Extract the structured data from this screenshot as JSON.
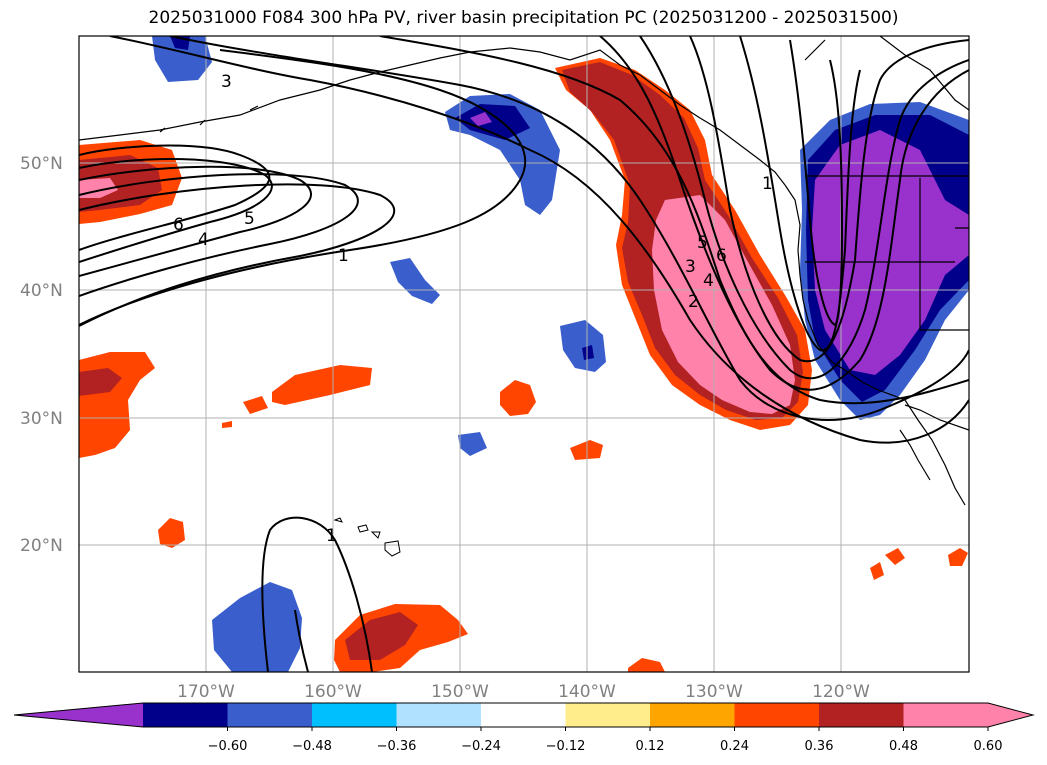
{
  "title": "2025031000 F084 300 hPa PV, river basin precipitation PC (2025031200 - 2025031500)",
  "lat_labels": [
    "50°N",
    "40°N",
    "30°N",
    "20°N"
  ],
  "lon_labels": [
    "170°W",
    "160°W",
    "150°W",
    "140°W",
    "130°W",
    "120°W"
  ],
  "colorbar": {
    "ticks": [
      "−0.60",
      "−0.48",
      "−0.36",
      "−0.24",
      "−0.12",
      "0.12",
      "0.24",
      "0.36",
      "0.48",
      "0.60"
    ],
    "colors": [
      "#9932cc",
      "#00008b",
      "#3a5fcd",
      "#00bfff",
      "#b0e2ff",
      "#ffffff",
      "#ffec8b",
      "#ffa500",
      "#ff4500",
      "#b22222",
      "#ff82ab",
      "#ff82ab"
    ],
    "extend": "both"
  },
  "pv_contour_labels": [
    "3",
    "6",
    "5",
    "4",
    "1",
    "5",
    "6",
    "3",
    "4",
    "2",
    "1",
    "1"
  ]
}
